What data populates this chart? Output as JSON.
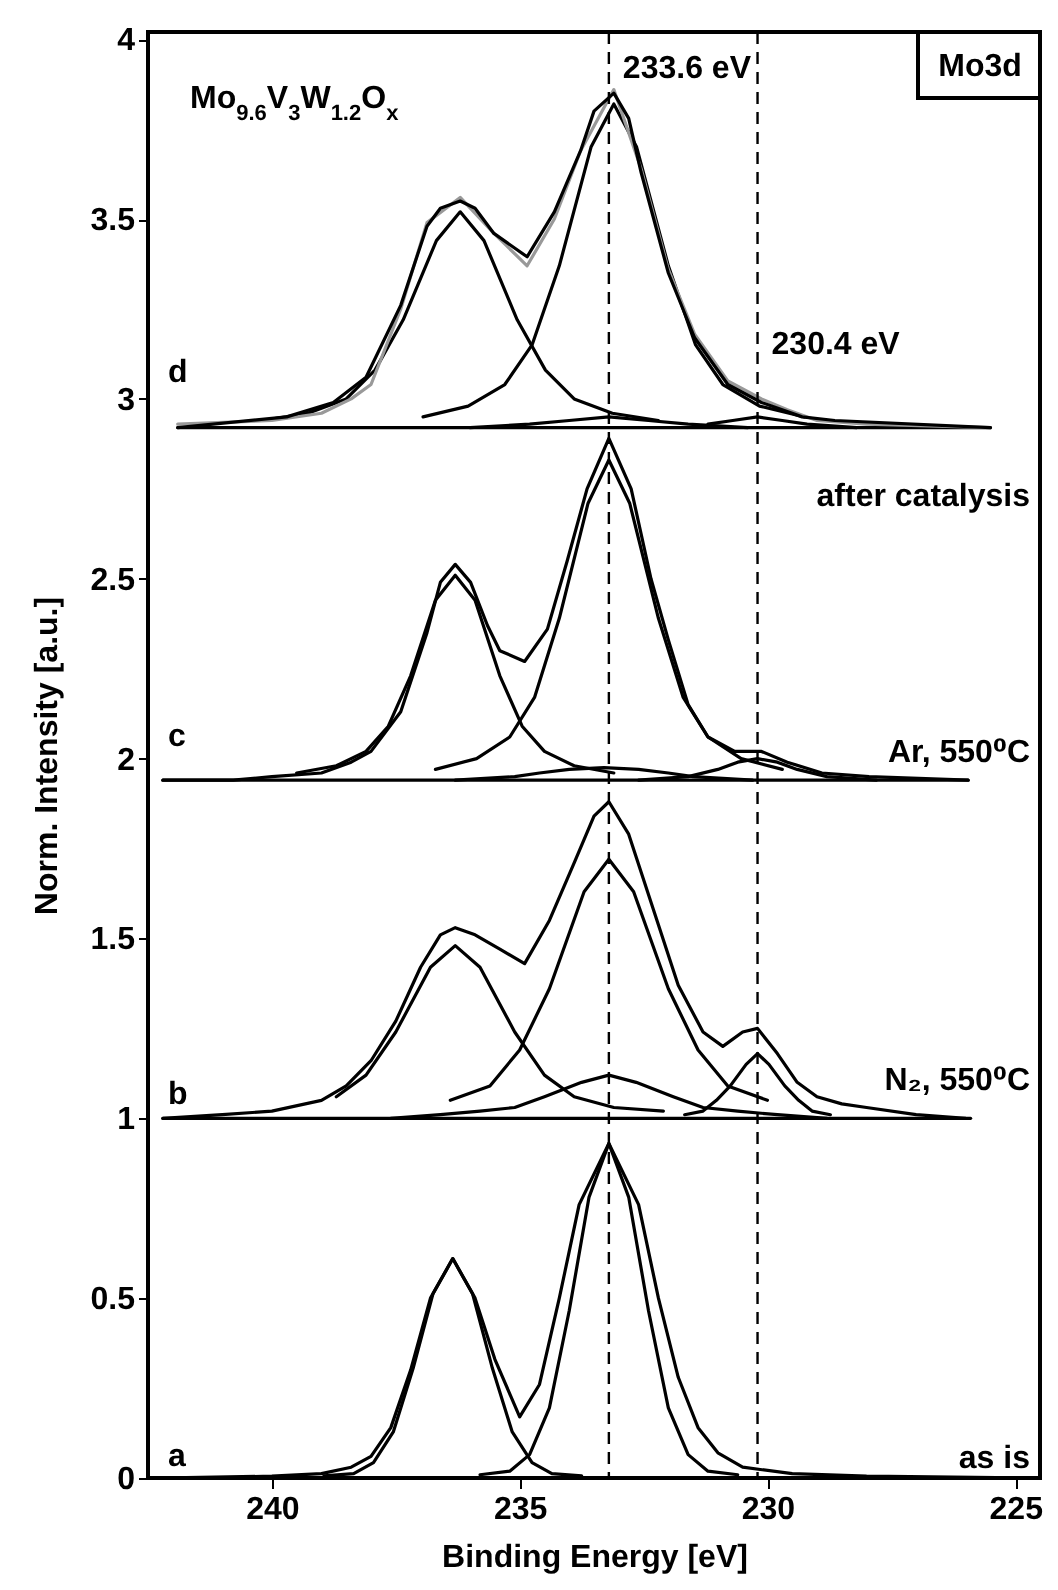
{
  "chart_data": {
    "type": "line",
    "xlabel": "Binding Energy [eV]",
    "ylabel": "Norm. Intensity [a.u.]",
    "xlim": [
      242.5,
      224.5
    ],
    "xticks": [
      240,
      235,
      230,
      225
    ],
    "ylim": [
      0,
      4.02
    ],
    "yticks": [
      0,
      0.5,
      1,
      1.5,
      2,
      2.5,
      3,
      3.5,
      4
    ],
    "line_style": "solid",
    "series": [
      {
        "color": "#000000",
        "x": [
          238.95,
          238.35,
          237.95,
          237.55,
          237.15,
          236.75,
          236.35,
          235.95,
          235.55,
          235.15,
          234.75,
          234.35,
          233.75
        ],
        "values": [
          0.006,
          0.012,
          0.043,
          0.128,
          0.305,
          0.512,
          0.61,
          0.512,
          0.305,
          0.128,
          0.043,
          0.012,
          0.006
        ]
      },
      {
        "color": "#000000",
        "x": [
          235.8,
          235.2,
          234.8,
          234.4,
          234.0,
          233.6,
          233.2,
          232.8,
          232.4,
          232.0,
          231.6,
          231.2,
          230.6
        ],
        "values": [
          0.009,
          0.019,
          0.065,
          0.195,
          0.465,
          0.781,
          0.93,
          0.781,
          0.465,
          0.195,
          0.065,
          0.019,
          0.009
        ]
      },
      {
        "color": "#000000",
        "x": [
          242.3,
          240,
          239,
          238.4,
          238,
          237.6,
          237.2,
          236.8,
          236.35,
          235.9,
          235.5,
          235.0,
          234.6,
          234.2,
          233.8,
          233.2,
          232.6,
          232.2,
          231.8,
          231.4,
          231,
          230.5,
          229.5,
          228,
          224.6
        ],
        "values": [
          0,
          0.005,
          0.012,
          0.03,
          0.06,
          0.14,
          0.3,
          0.5,
          0.61,
          0.5,
          0.33,
          0.17,
          0.26,
          0.5,
          0.76,
          0.93,
          0.76,
          0.5,
          0.28,
          0.14,
          0.07,
          0.03,
          0.012,
          0.005,
          0
        ]
      },
      {
        "color": "#000000",
        "x": [
          242.2,
          225.9
        ],
        "values": [
          1.0,
          1.0
        ]
      },
      {
        "color": "#000000",
        "x": [
          238.7,
          238.1,
          237.5,
          236.8,
          236.3,
          235.8,
          235.1,
          234.5,
          233.9,
          233.1,
          232.1
        ],
        "values": [
          1.06,
          1.12,
          1.24,
          1.42,
          1.48,
          1.42,
          1.24,
          1.12,
          1.06,
          1.03,
          1.02
        ]
      },
      {
        "color": "#000000",
        "x": [
          236.4,
          235.6,
          235.0,
          234.4,
          233.7,
          233.2,
          232.7,
          232.0,
          231.4,
          230.8,
          230.0
        ],
        "values": [
          1.05,
          1.09,
          1.19,
          1.36,
          1.63,
          1.72,
          1.63,
          1.36,
          1.19,
          1.09,
          1.05
        ]
      },
      {
        "color": "#000000",
        "x": [
          237.6,
          236.6,
          235.8,
          235.1,
          234.5,
          233.75,
          233.2,
          232.65,
          231.9,
          231.3,
          230.6,
          229.8,
          228.8
        ],
        "values": [
          1.0,
          1.01,
          1.02,
          1.03,
          1.06,
          1.1,
          1.12,
          1.1,
          1.06,
          1.03,
          1.02,
          1.01,
          1.0
        ]
      },
      {
        "color": "#000000",
        "x": [
          231.67,
          231.3,
          231.03,
          230.75,
          230.43,
          230.2,
          229.97,
          229.65,
          229.37,
          229.1,
          228.73
        ],
        "values": [
          1.01,
          1.02,
          1.05,
          1.09,
          1.15,
          1.18,
          1.15,
          1.09,
          1.05,
          1.02,
          1.01
        ]
      },
      {
        "color": "#000000",
        "x": [
          242.2,
          241,
          240,
          239,
          238.5,
          238,
          237.5,
          237,
          236.6,
          236.3,
          235.9,
          235.4,
          234.9,
          234.4,
          233.9,
          233.5,
          233.2,
          232.8,
          232.3,
          231.8,
          231.3,
          230.9,
          230.5,
          230.2,
          229.8,
          229.4,
          229,
          228.5,
          228,
          227,
          226
        ],
        "values": [
          1.0,
          1.01,
          1.02,
          1.05,
          1.09,
          1.16,
          1.27,
          1.42,
          1.51,
          1.53,
          1.51,
          1.47,
          1.43,
          1.55,
          1.71,
          1.84,
          1.88,
          1.79,
          1.58,
          1.37,
          1.24,
          1.2,
          1.24,
          1.25,
          1.18,
          1.1,
          1.06,
          1.04,
          1.03,
          1.01,
          1.0
        ]
      },
      {
        "color": "#000000",
        "x": [
          242.2,
          225.95
        ],
        "values": [
          1.94,
          1.94
        ]
      },
      {
        "color": "#000000",
        "x": [
          239.5,
          238.7,
          238.1,
          237.65,
          237.2,
          236.7,
          236.3,
          235.9,
          235.4,
          234.95,
          234.5,
          233.9,
          233.1
        ],
        "values": [
          1.96,
          1.98,
          2.02,
          2.09,
          2.23,
          2.44,
          2.51,
          2.44,
          2.23,
          2.09,
          2.02,
          1.98,
          1.96
        ]
      },
      {
        "color": "#000000",
        "x": [
          236.7,
          235.87,
          235.2,
          234.7,
          234.2,
          233.62,
          233.2,
          232.78,
          232.2,
          231.7,
          231.2,
          230.53,
          229.7
        ],
        "values": [
          1.97,
          2.0,
          2.06,
          2.17,
          2.39,
          2.71,
          2.83,
          2.71,
          2.39,
          2.17,
          2.06,
          2.0,
          1.97
        ]
      },
      {
        "color": "#000000",
        "x": [
          236.3,
          235.1,
          234.6,
          234.0,
          233.3,
          232.6,
          232.0,
          231.5,
          230.3
        ],
        "values": [
          1.94,
          1.95,
          1.96,
          1.97,
          1.975,
          1.97,
          1.96,
          1.95,
          1.94
        ]
      },
      {
        "color": "#000000",
        "x": [
          232.6,
          231.6,
          231.0,
          230.6,
          230.2,
          229.8,
          229.4,
          228.8,
          227.8
        ],
        "values": [
          1.94,
          1.95,
          1.97,
          1.99,
          2.0,
          1.99,
          1.97,
          1.95,
          1.94
        ]
      },
      {
        "color": "#000000",
        "x": [
          242.2,
          240.78,
          240,
          239,
          238.4,
          238,
          237.4,
          236.87,
          236.6,
          236.3,
          235.99,
          235.65,
          235.4,
          234.9,
          234.44,
          234.04,
          233.64,
          233.2,
          232.75,
          232.35,
          232.0,
          231.6,
          231.2,
          230.66,
          230.12,
          229.6,
          228.9,
          227.95,
          225.95
        ],
        "values": [
          1.94,
          1.94,
          1.95,
          1.96,
          1.99,
          2.02,
          2.13,
          2.35,
          2.49,
          2.54,
          2.49,
          2.37,
          2.3,
          2.27,
          2.36,
          2.55,
          2.75,
          2.89,
          2.75,
          2.5,
          2.33,
          2.15,
          2.06,
          2.02,
          2.02,
          1.99,
          1.96,
          1.95,
          1.94
        ]
      },
      {
        "color": "#000000",
        "x": [
          241.9,
          225.5
        ],
        "values": [
          2.92,
          2.92
        ]
      },
      {
        "color": "#000000",
        "x": [
          240.2,
          239.27,
          238.5,
          237.92,
          237.35,
          236.68,
          236.2,
          235.72,
          235.05,
          234.48,
          233.9,
          233.13,
          232.2
        ],
        "values": [
          2.94,
          2.96,
          3.0,
          3.08,
          3.22,
          3.44,
          3.52,
          3.44,
          3.22,
          3.08,
          3.0,
          2.96,
          2.94
        ]
      },
      {
        "color": "#000000",
        "x": [
          236.95,
          236.04,
          235.3,
          234.75,
          234.2,
          233.56,
          233.1,
          232.64,
          232.0,
          231.45,
          230.9,
          230.16,
          229.25
        ],
        "values": [
          2.95,
          2.98,
          3.04,
          3.15,
          3.37,
          3.7,
          3.82,
          3.7,
          3.37,
          3.15,
          3.04,
          2.98,
          2.95
        ]
      },
      {
        "color": "#000000",
        "x": [
          236.0,
          234.8,
          234.0,
          233.2,
          232.4,
          231.6,
          230.4
        ],
        "values": [
          2.92,
          2.93,
          2.94,
          2.95,
          2.94,
          2.93,
          2.92
        ]
      },
      {
        "color": "#000000",
        "x": [
          231.2,
          230.7,
          230.2,
          229.7,
          229.2,
          228.2
        ],
        "values": [
          2.93,
          2.94,
          2.95,
          2.94,
          2.93,
          2.92
        ]
      },
      {
        "color": "#999999",
        "x": [
          241.9,
          240,
          239,
          238.4,
          238.0,
          237.4,
          236.87,
          236.2,
          235.52,
          234.85,
          234.3,
          233.77,
          233.1,
          232.55,
          232.0,
          231.47,
          230.8,
          230.12,
          229.6,
          229.0,
          228.0,
          225.5
        ],
        "values": [
          2.93,
          2.94,
          2.96,
          3.0,
          3.04,
          3.25,
          3.49,
          3.56,
          3.46,
          3.37,
          3.5,
          3.69,
          3.86,
          3.64,
          3.36,
          3.18,
          3.05,
          3.0,
          2.97,
          2.94,
          2.93,
          2.92
        ]
      },
      {
        "color": "#000000",
        "x": [
          241.9,
          239.7,
          238.76,
          238.1,
          237.4,
          236.87,
          236.6,
          236.2,
          235.9,
          235.52,
          234.85,
          234.3,
          233.77,
          233.5,
          233.1,
          232.8,
          232.55,
          232.0,
          231.47,
          230.8,
          230.12,
          229.3,
          228.64,
          225.5
        ],
        "values": [
          2.92,
          2.95,
          2.99,
          3.06,
          3.26,
          3.48,
          3.53,
          3.55,
          3.53,
          3.46,
          3.395,
          3.52,
          3.69,
          3.8,
          3.85,
          3.78,
          3.63,
          3.35,
          3.17,
          3.04,
          2.99,
          2.95,
          2.94,
          2.92
        ]
      }
    ],
    "ref_lines": [
      {
        "axis": "x",
        "value": 233.2,
        "line_style": "dashed",
        "color": "#000000",
        "label": "233.6 eV"
      },
      {
        "axis": "x",
        "value": 230.2,
        "line_style": "dashed",
        "color": "#000000",
        "label": "230.4 eV"
      }
    ],
    "annotations": [
      "Mo$_{9.6}$V$_{3}$W$_{1.2}$O$_{x}$",
      "Mo3d",
      "a",
      "b",
      "c",
      "d",
      "as is",
      "N₂, 550⁰C",
      "Ar, 550⁰C",
      "after catalysis"
    ]
  }
}
